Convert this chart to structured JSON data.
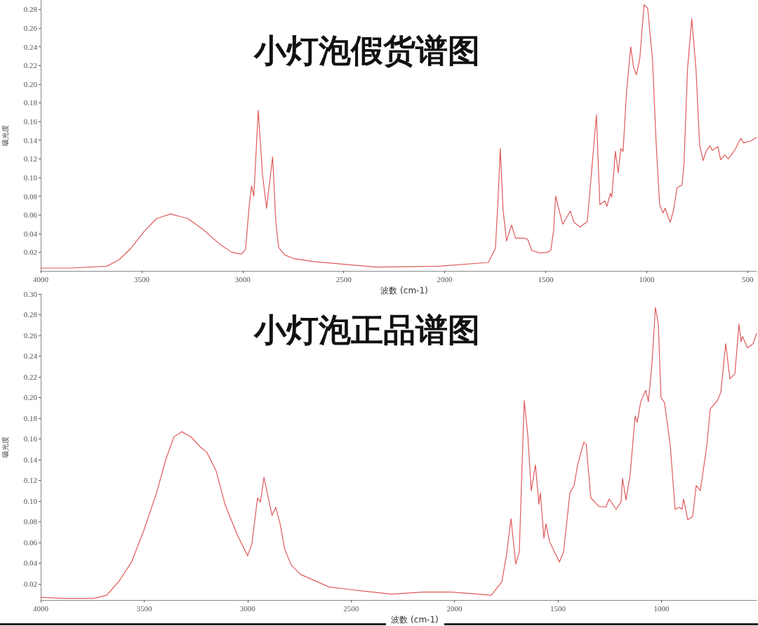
{
  "chart_data": [
    {
      "type": "line",
      "title": "小灯泡假货谱图",
      "xlabel": "波数 (cm-1)",
      "ylabel": "吸光度",
      "xlim": [
        4000,
        456
      ],
      "xticks": [
        4000,
        3500,
        3000,
        2500,
        2000,
        1500,
        1000,
        500
      ],
      "ylim": [
        0,
        0.29
      ],
      "yticks": [
        0.02,
        0.04,
        0.06,
        0.08,
        {
          "value": 0.1,
          "label": "0.10"
        },
        0.12,
        0.14,
        0.16,
        0.18,
        {
          "value": 0.2,
          "label": "0.20"
        },
        0.22,
        0.24,
        0.26,
        0.28
      ],
      "x": [
        4000,
        3854,
        3673,
        3611,
        3550,
        3489,
        3427,
        3357,
        3271,
        3194,
        3116,
        3055,
        3007,
        2986,
        2968,
        2956,
        2945,
        2923,
        2902,
        2882,
        2852,
        2836,
        2822,
        2791,
        2744,
        2652,
        2496,
        2340,
        2031,
        1784,
        1749,
        1735,
        1725,
        1711,
        1694,
        1669,
        1649,
        1607,
        1590,
        1569,
        1527,
        1492,
        1475,
        1461,
        1451,
        1416,
        1378,
        1360,
        1329,
        1294,
        1249,
        1232,
        1207,
        1197,
        1180,
        1173,
        1155,
        1141,
        1128,
        1117,
        1100,
        1079,
        1065,
        1051,
        1034,
        1013,
        995,
        971,
        954,
        936,
        919,
        909,
        884,
        867,
        850,
        825,
        815,
        798,
        777,
        756,
        738,
        721,
        704,
        686,
        676,
        648,
        634,
        613,
        596,
        565,
        534,
        520,
        485,
        456
      ],
      "series": [
        {
          "color": "#e05a5a",
          "values": [
            0.003,
            0.003,
            0.005,
            0.012,
            0.025,
            0.042,
            0.056,
            0.061,
            0.056,
            0.044,
            0.029,
            0.02,
            0.018,
            0.023,
            0.069,
            0.091,
            0.08,
            0.172,
            0.103,
            0.067,
            0.122,
            0.052,
            0.025,
            0.017,
            0.013,
            0.01,
            0.007,
            0.004,
            0.005,
            0.009,
            0.024,
            0.08,
            0.131,
            0.065,
            0.032,
            0.049,
            0.035,
            0.035,
            0.034,
            0.022,
            0.019,
            0.02,
            0.022,
            0.043,
            0.08,
            0.05,
            0.064,
            0.052,
            0.047,
            0.053,
            0.167,
            0.071,
            0.075,
            0.069,
            0.083,
            0.079,
            0.128,
            0.105,
            0.131,
            0.128,
            0.191,
            0.24,
            0.218,
            0.21,
            0.228,
            0.285,
            0.281,
            0.225,
            0.14,
            0.071,
            0.062,
            0.067,
            0.052,
            0.065,
            0.089,
            0.092,
            0.116,
            0.216,
            0.27,
            0.216,
            0.135,
            0.118,
            0.129,
            0.134,
            0.129,
            0.133,
            0.119,
            0.124,
            0.12,
            0.129,
            0.142,
            0.137,
            0.139,
            0.143
          ]
        }
      ]
    },
    {
      "type": "line",
      "title": "小灯泡正品谱图",
      "xlabel": "波数 (cm-1)",
      "ylabel": "吸光度",
      "xlim": [
        4000,
        540
      ],
      "xticks": [
        4000,
        3500,
        3000,
        2500,
        2000,
        1500,
        1000
      ],
      "ylim": [
        0.004,
        0.3
      ],
      "yticks": [
        0.02,
        0.04,
        0.06,
        0.08,
        {
          "value": 0.1,
          "label": "0.10"
        },
        0.12,
        0.14,
        0.16,
        0.18,
        {
          "value": 0.2,
          "label": "0.20"
        },
        0.22,
        0.24,
        0.26,
        0.28,
        {
          "value": 0.3,
          "label": "0.30"
        }
      ],
      "x": [
        4000,
        3895,
        3742,
        3681,
        3620,
        3561,
        3501,
        3440,
        3394,
        3356,
        3318,
        3274,
        3227,
        3197,
        3152,
        3108,
        3047,
        3000,
        2979,
        2952,
        2938,
        2921,
        2882,
        2864,
        2842,
        2820,
        2789,
        2743,
        2606,
        2486,
        2304,
        2151,
        2016,
        1822,
        1771,
        1748,
        1727,
        1704,
        1687,
        1663,
        1646,
        1629,
        1609,
        1592,
        1585,
        1568,
        1558,
        1541,
        1493,
        1473,
        1442,
        1422,
        1405,
        1375,
        1364,
        1341,
        1303,
        1269,
        1252,
        1219,
        1195,
        1188,
        1171,
        1151,
        1127,
        1117,
        1100,
        1076,
        1063,
        1046,
        1029,
        1015,
        1002,
        985,
        957,
        934,
        913,
        900,
        893,
        873,
        849,
        832,
        812,
        781,
        764,
        747,
        730,
        713,
        689,
        669,
        645,
        625,
        615,
        608,
        584,
        557,
        540
      ],
      "series": [
        {
          "color": "#e05a5a",
          "values": [
            0.007,
            0.006,
            0.006,
            0.009,
            0.023,
            0.041,
            0.072,
            0.108,
            0.141,
            0.162,
            0.167,
            0.162,
            0.152,
            0.147,
            0.129,
            0.096,
            0.066,
            0.047,
            0.059,
            0.103,
            0.099,
            0.123,
            0.086,
            0.094,
            0.077,
            0.053,
            0.038,
            0.029,
            0.017,
            0.014,
            0.01,
            0.012,
            0.012,
            0.009,
            0.022,
            0.049,
            0.083,
            0.039,
            0.051,
            0.197,
            0.164,
            0.11,
            0.135,
            0.097,
            0.108,
            0.064,
            0.078,
            0.061,
            0.041,
            0.051,
            0.108,
            0.115,
            0.135,
            0.157,
            0.155,
            0.103,
            0.095,
            0.094,
            0.102,
            0.092,
            0.099,
            0.122,
            0.101,
            0.126,
            0.182,
            0.176,
            0.196,
            0.207,
            0.196,
            0.232,
            0.287,
            0.271,
            0.2,
            0.195,
            0.153,
            0.092,
            0.094,
            0.092,
            0.102,
            0.082,
            0.085,
            0.115,
            0.11,
            0.153,
            0.189,
            0.193,
            0.197,
            0.205,
            0.252,
            0.218,
            0.223,
            0.271,
            0.254,
            0.259,
            0.248,
            0.252,
            0.262
          ]
        }
      ]
    }
  ]
}
